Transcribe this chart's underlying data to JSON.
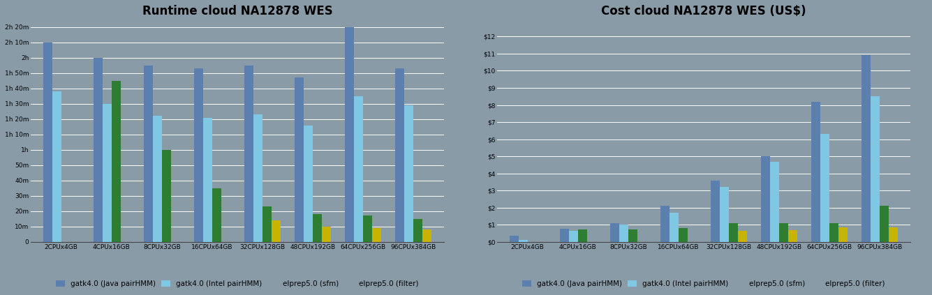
{
  "left_title": "Runtime cloud NA12878 WES",
  "right_title": "Cost cloud NA12878 WES (US$)",
  "categories": [
    "2CPUx4GB",
    "4CPUx16GB",
    "8CPUx32GB",
    "16CPUx64GB",
    "32CPUx128GB",
    "48CPUx192GB",
    "64CPUx256GB",
    "96CPUx384GB"
  ],
  "series_labels": [
    "gatk4.0 (Java pairHMM)",
    "gatk4.0 (Intel pairHMM)",
    "elprep5.0 (sfm)",
    "elprep5.0 (filter)"
  ],
  "colors": [
    "#5b7faf",
    "#7ec8e3",
    "#2e7d32",
    "#c8b400"
  ],
  "runtime_minutes": [
    [
      130,
      120,
      115,
      113,
      115,
      107,
      140,
      113
    ],
    [
      98,
      90,
      82,
      81,
      83,
      76,
      95,
      89
    ],
    [
      null,
      105,
      60,
      35,
      23,
      18,
      17,
      15
    ],
    [
      null,
      null,
      null,
      null,
      14,
      10,
      9,
      8
    ]
  ],
  "cost_dollars": [
    [
      0.35,
      0.75,
      1.1,
      2.1,
      3.6,
      5.0,
      8.2,
      10.9
    ],
    [
      0.12,
      0.65,
      1.0,
      1.7,
      3.2,
      4.7,
      6.3,
      8.5
    ],
    [
      null,
      0.72,
      0.72,
      0.82,
      1.1,
      1.1,
      1.1,
      2.1
    ],
    [
      null,
      null,
      null,
      null,
      0.65,
      0.68,
      0.85,
      0.85
    ]
  ],
  "runtime_yticks_minutes": [
    0,
    10,
    20,
    30,
    40,
    50,
    60,
    70,
    80,
    90,
    100,
    110,
    120,
    130,
    140
  ],
  "runtime_ytick_labels": [
    "0",
    "10m",
    "20m",
    "30m",
    "40m",
    "50m",
    "1h",
    "1h 10m",
    "1h 20m",
    "1h 30m",
    "1h 40m",
    "1h 50m",
    "2h",
    "2h 10m",
    "2h 20m"
  ],
  "cost_yticks": [
    0,
    1,
    2,
    3,
    4,
    5,
    6,
    7,
    8,
    9,
    10,
    11,
    12
  ],
  "cost_ytick_labels": [
    "$0",
    "$1",
    "$2",
    "$3",
    "$4",
    "$5",
    "$6",
    "$7",
    "$8",
    "$9",
    "$10",
    "$11",
    "$12"
  ],
  "bar_width": 0.18,
  "background_color": "#8a9ba8",
  "plot_bg_color": "#8a9ba8",
  "title_fontsize": 12,
  "tick_fontsize": 6.5,
  "legend_fontsize": 7.5
}
